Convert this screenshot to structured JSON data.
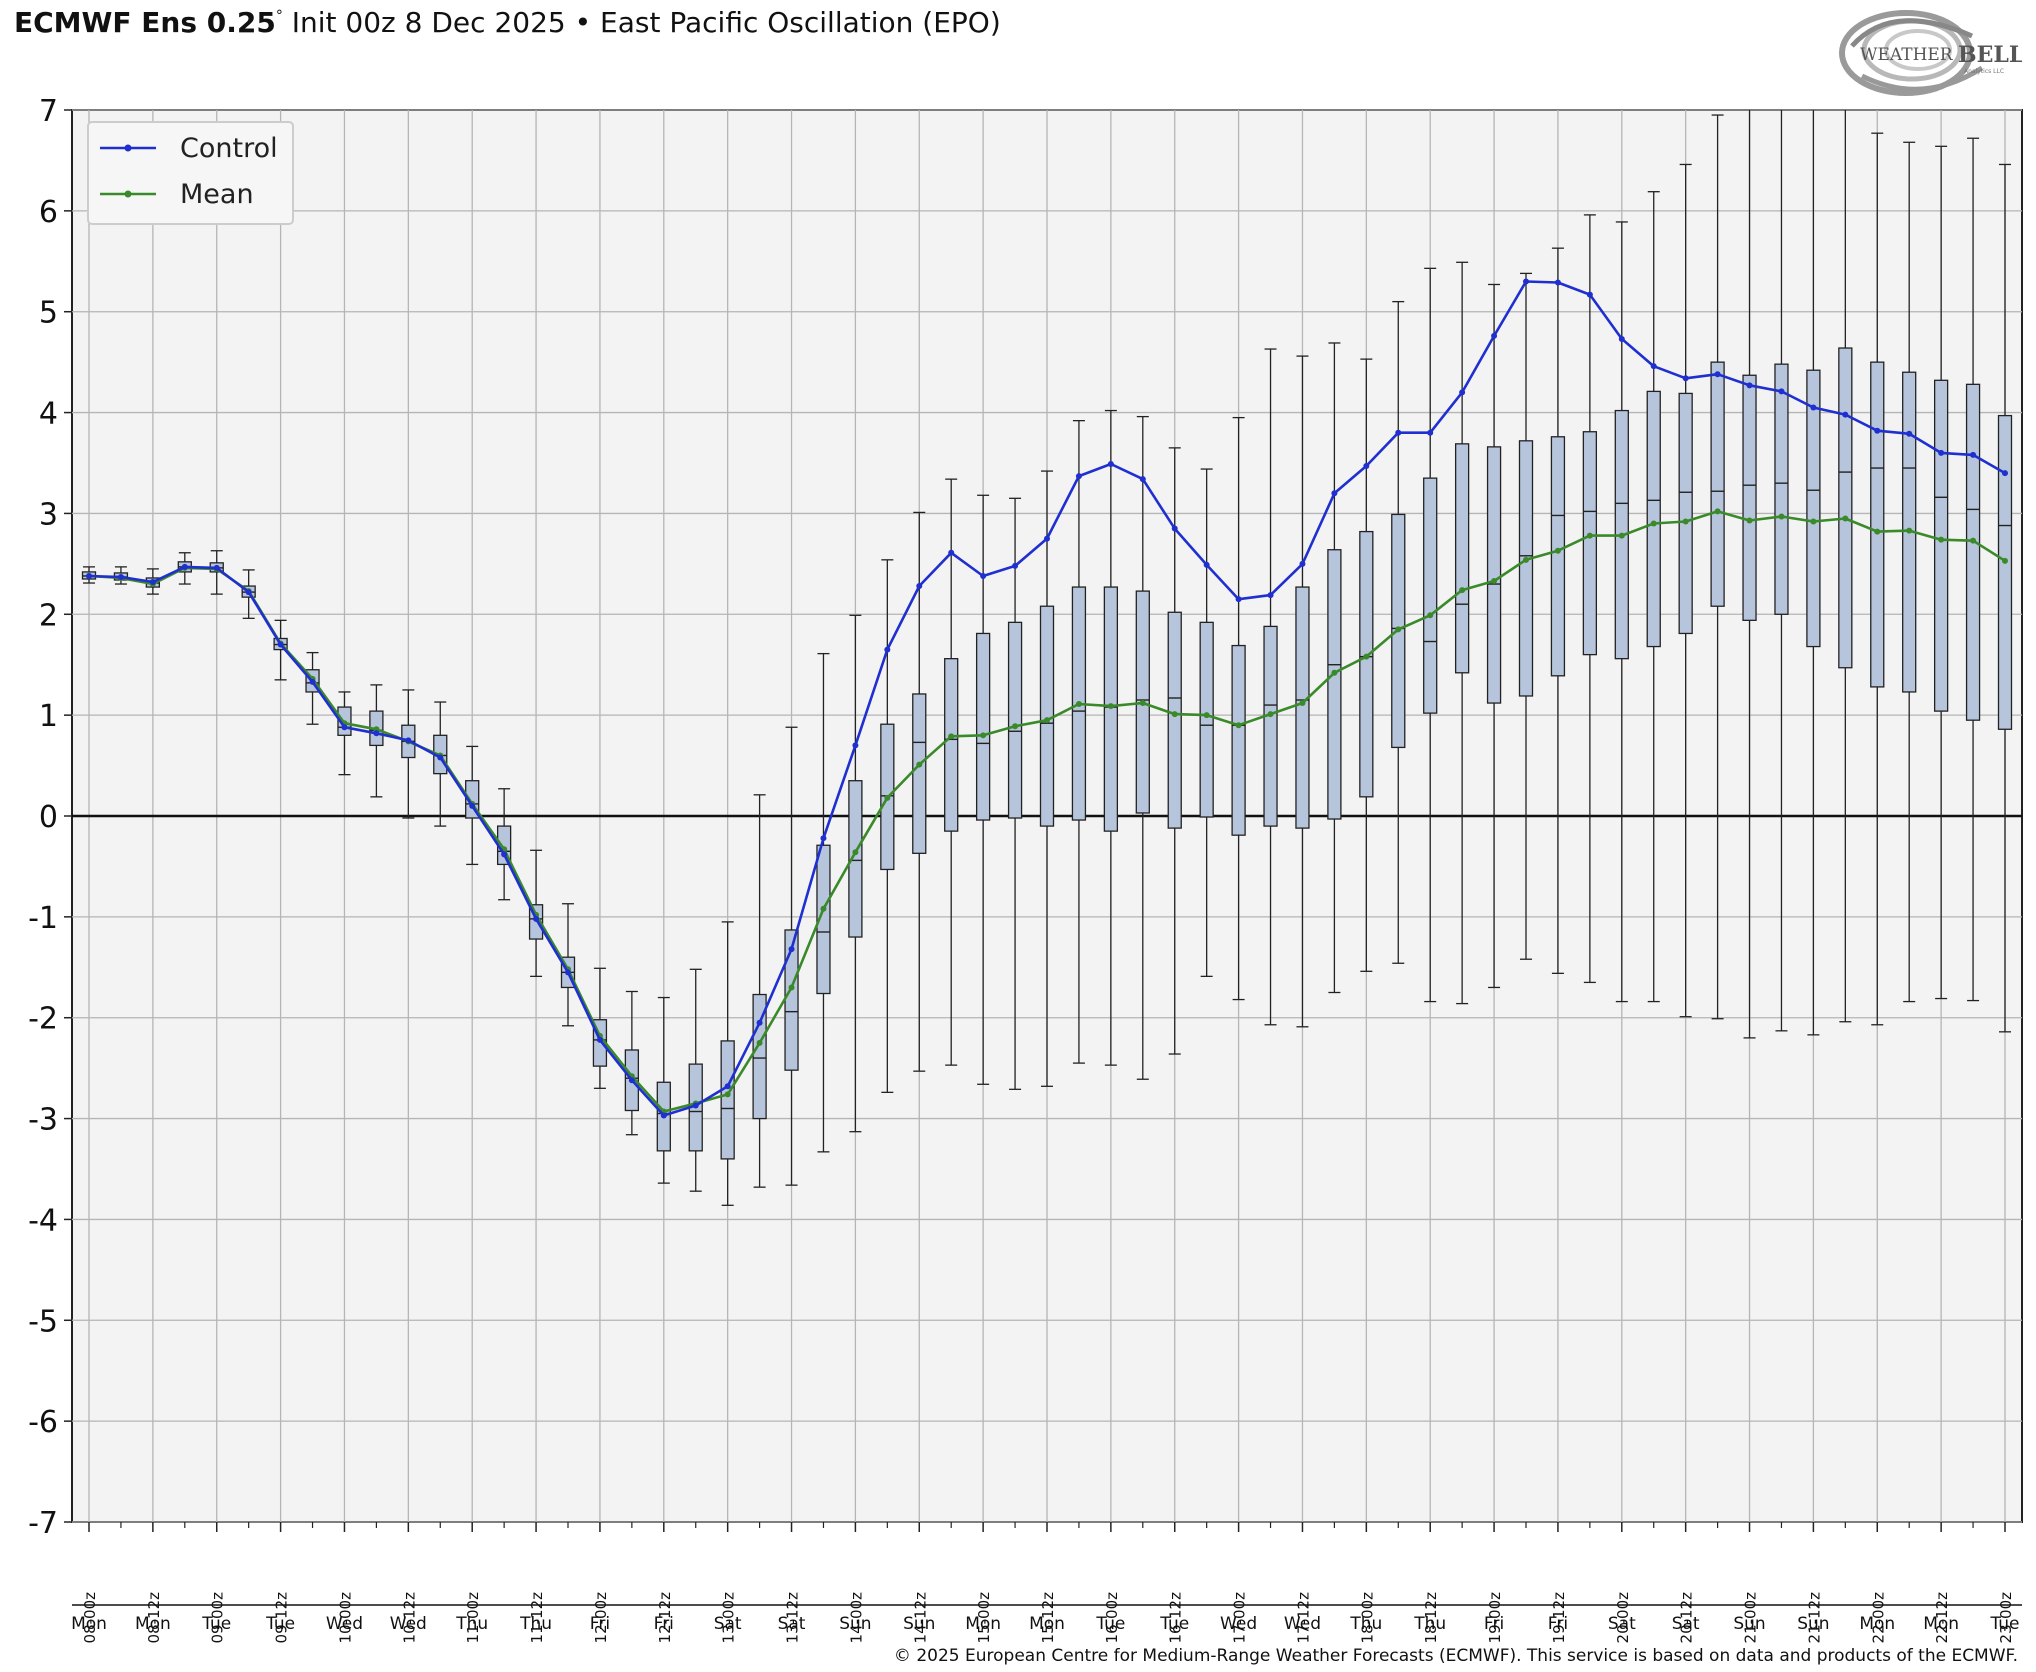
{
  "header": {
    "model": "ECMWF Ens 0.25",
    "degree": "°",
    "init": "Init 00z 8 Dec 2025",
    "separator": "•",
    "title": "East Pacific Oscillation (EPO)"
  },
  "logo": {
    "text_a": "WEATHER",
    "text_b": "BELL",
    "sub": "Analytics LLC"
  },
  "footer": {
    "copyright": "© 2025 European Centre for Medium-Range Weather Forecasts (ECMWF). This service is based on data and products of the ECMWF."
  },
  "colors": {
    "control": "#1f2fd0",
    "mean": "#3a8a2a",
    "box_fill": "#b6c5dc",
    "plot_bg": "#f3f3f3",
    "grid": "#b5b5b5"
  },
  "chart_data": {
    "type": "box",
    "ylim": [
      -7,
      7
    ],
    "yticks": [
      7,
      6,
      5,
      4,
      3,
      2,
      1,
      0,
      -1,
      -2,
      -3,
      -4,
      -5,
      -6,
      -7
    ],
    "grid": true,
    "legend_position": "top-left",
    "legend": [
      "Control",
      "Mean"
    ],
    "categories": [
      "08-00z",
      "08-06z",
      "08-12z",
      "08-18z",
      "09-00z",
      "09-06z",
      "09-12z",
      "09-18z",
      "10-00z",
      "10-06z",
      "10-12z",
      "10-18z",
      "11-00z",
      "11-06z",
      "11-12z",
      "11-18z",
      "12-00z",
      "12-06z",
      "12-12z",
      "12-18z",
      "13-00z",
      "13-06z",
      "13-12z",
      "13-18z",
      "14-00z",
      "14-06z",
      "14-12z",
      "14-18z",
      "15-00z",
      "15-06z",
      "15-12z",
      "15-18z",
      "16-00z",
      "16-06z",
      "16-12z",
      "16-18z",
      "17-00z",
      "17-06z",
      "17-12z",
      "17-18z",
      "18-00z",
      "18-06z",
      "18-12z",
      "18-18z",
      "19-00z",
      "19-06z",
      "19-12z",
      "19-18z",
      "20-00z",
      "20-06z",
      "20-12z",
      "20-18z",
      "21-00z",
      "21-06z",
      "21-12z",
      "21-18z",
      "22-00z",
      "22-06z",
      "22-12z",
      "22-18z",
      "23-00z"
    ],
    "tick_labels": [
      "08-00z",
      "08-12z",
      "09-00z",
      "09-12z",
      "10-00z",
      "10-12z",
      "11-00z",
      "11-12z",
      "12-00z",
      "12-12z",
      "13-00z",
      "13-12z",
      "14-00z",
      "14-12z",
      "15-00z",
      "15-12z",
      "16-00z",
      "16-12z",
      "17-00z",
      "17-12z",
      "18-00z",
      "18-12z",
      "19-00z",
      "19-12z",
      "20-00z",
      "20-12z",
      "21-00z",
      "21-12z",
      "22-00z",
      "22-12z",
      "23-00z"
    ],
    "day_labels": [
      "Mon",
      "Mon",
      "Tue",
      "Tue",
      "Wed",
      "Wed",
      "Thu",
      "Thu",
      "Fri",
      "Fri",
      "Sat",
      "Sat",
      "Sun",
      "Sun",
      "Mon",
      "Mon",
      "Tue",
      "Tue",
      "Wed",
      "Wed",
      "Thu",
      "Thu",
      "Fri",
      "Fri",
      "Sat",
      "Sat",
      "Sun",
      "Sun",
      "Mon",
      "Mon",
      "Tue"
    ],
    "series": [
      {
        "name": "Control",
        "values": [
          2.38,
          2.37,
          2.32,
          2.47,
          2.46,
          2.22,
          1.7,
          1.33,
          0.88,
          0.82,
          0.75,
          0.58,
          0.1,
          -0.38,
          -1.02,
          -1.55,
          -2.22,
          -2.62,
          -2.97,
          -2.87,
          -2.68,
          -2.05,
          -1.32,
          -0.22,
          0.7,
          1.65,
          2.28,
          2.61,
          2.38,
          2.48,
          2.75,
          3.37,
          3.49,
          3.34,
          2.85,
          2.49,
          2.15,
          2.19,
          2.5,
          3.2,
          3.47,
          3.8,
          3.8,
          4.2,
          4.76,
          5.3,
          5.29,
          5.17,
          4.73,
          4.46,
          4.34,
          4.38,
          4.27,
          4.21,
          4.05,
          3.98,
          3.82,
          3.79,
          3.6,
          3.58,
          3.4
        ]
      },
      {
        "name": "Mean",
        "values": [
          2.38,
          2.36,
          2.3,
          2.46,
          2.45,
          2.23,
          1.71,
          1.36,
          0.92,
          0.86,
          0.74,
          0.6,
          0.12,
          -0.33,
          -0.98,
          -1.52,
          -2.18,
          -2.58,
          -2.93,
          -2.85,
          -2.76,
          -2.25,
          -1.7,
          -0.92,
          -0.36,
          0.18,
          0.51,
          0.79,
          0.8,
          0.89,
          0.95,
          1.11,
          1.09,
          1.12,
          1.01,
          1.0,
          0.9,
          1.01,
          1.12,
          1.42,
          1.58,
          1.85,
          1.99,
          2.24,
          2.33,
          2.54,
          2.63,
          2.78,
          2.78,
          2.9,
          2.92,
          3.02,
          2.93,
          2.97,
          2.92,
          2.95,
          2.82,
          2.83,
          2.74,
          2.73,
          2.53
        ]
      }
    ],
    "boxes": {
      "q1": [
        2.35,
        2.34,
        2.27,
        2.42,
        2.42,
        2.17,
        1.65,
        1.23,
        0.8,
        0.7,
        0.58,
        0.42,
        -0.02,
        -0.48,
        -1.22,
        -1.7,
        -2.48,
        -2.92,
        -3.32,
        -3.32,
        -3.4,
        -3.0,
        -2.52,
        -1.76,
        -1.2,
        -0.53,
        -0.37,
        -0.15,
        -0.04,
        -0.02,
        -0.1,
        -0.04,
        -0.15,
        0.03,
        -0.12,
        -0.01,
        -0.19,
        -0.1,
        -0.12,
        -0.03,
        0.19,
        0.68,
        1.02,
        1.42,
        1.12,
        1.19,
        1.39,
        1.6,
        1.56,
        1.68,
        1.81,
        2.08,
        1.94,
        2.0,
        1.68,
        1.47,
        1.28,
        1.23,
        1.04,
        0.95,
        0.86
      ],
      "median": [
        2.38,
        2.37,
        2.31,
        2.47,
        2.46,
        2.22,
        1.7,
        1.32,
        0.88,
        0.85,
        0.74,
        0.6,
        0.12,
        -0.35,
        -1.02,
        -1.55,
        -2.22,
        -2.6,
        -2.95,
        -2.93,
        -2.9,
        -2.4,
        -1.94,
        -1.15,
        -0.44,
        0.2,
        0.73,
        0.76,
        0.72,
        0.84,
        0.92,
        1.04,
        1.08,
        1.15,
        1.17,
        0.9,
        0.9,
        1.1,
        1.15,
        1.5,
        1.58,
        1.86,
        1.73,
        2.1,
        2.3,
        2.58,
        2.98,
        3.02,
        3.1,
        3.13,
        3.21,
        3.22,
        3.28,
        3.3,
        3.23,
        3.41,
        3.45,
        3.45,
        3.16,
        3.04,
        2.88
      ],
      "q3": [
        2.42,
        2.41,
        2.36,
        2.52,
        2.51,
        2.28,
        1.76,
        1.45,
        1.08,
        1.04,
        0.9,
        0.8,
        0.35,
        -0.1,
        -0.88,
        -1.4,
        -2.02,
        -2.32,
        -2.64,
        -2.46,
        -2.23,
        -1.77,
        -1.13,
        -0.29,
        0.35,
        0.91,
        1.21,
        1.56,
        1.81,
        1.92,
        2.08,
        2.27,
        2.27,
        2.23,
        2.02,
        1.92,
        1.69,
        1.88,
        2.27,
        2.64,
        2.82,
        2.99,
        3.35,
        3.69,
        3.66,
        3.72,
        3.76,
        3.81,
        4.02,
        4.21,
        4.19,
        4.5,
        4.37,
        4.48,
        4.42,
        4.64,
        4.5,
        4.4,
        4.32,
        4.28,
        3.97
      ],
      "whisker_low": [
        2.31,
        2.3,
        2.2,
        2.3,
        2.2,
        1.96,
        1.35,
        0.91,
        0.41,
        0.19,
        -0.02,
        -0.1,
        -0.48,
        -0.83,
        -1.59,
        -2.08,
        -2.7,
        -3.16,
        -3.64,
        -3.72,
        -3.86,
        -3.68,
        -3.66,
        -3.33,
        -3.13,
        -2.74,
        -2.53,
        -2.47,
        -2.66,
        -2.71,
        -2.68,
        -2.45,
        -2.47,
        -2.61,
        -2.36,
        -1.59,
        -1.82,
        -2.07,
        -2.09,
        -1.75,
        -1.54,
        -1.46,
        -1.84,
        -1.86,
        -1.7,
        -1.42,
        -1.56,
        -1.65,
        -1.84,
        -1.84,
        -1.99,
        -2.01,
        -2.2,
        -2.13,
        -2.17,
        -2.04,
        -2.07,
        -1.84,
        -1.81,
        -1.83,
        -2.14
      ],
      "whisker_high": [
        2.47,
        2.47,
        2.45,
        2.61,
        2.63,
        2.44,
        1.94,
        1.62,
        1.23,
        1.3,
        1.25,
        1.13,
        0.69,
        0.27,
        -0.34,
        -0.87,
        -1.51,
        -1.74,
        -1.8,
        -1.52,
        -1.05,
        0.21,
        0.88,
        1.61,
        1.99,
        2.54,
        3.01,
        3.34,
        3.18,
        3.15,
        3.42,
        3.92,
        4.02,
        3.96,
        3.65,
        3.44,
        3.95,
        4.63,
        4.56,
        4.69,
        4.53,
        5.1,
        5.43,
        5.49,
        5.27,
        5.38,
        5.63,
        5.96,
        5.89,
        6.19,
        6.46,
        6.95,
        7.0,
        7.0,
        7.0,
        7.0,
        6.77,
        6.68,
        6.64,
        6.72,
        6.46
      ]
    }
  }
}
